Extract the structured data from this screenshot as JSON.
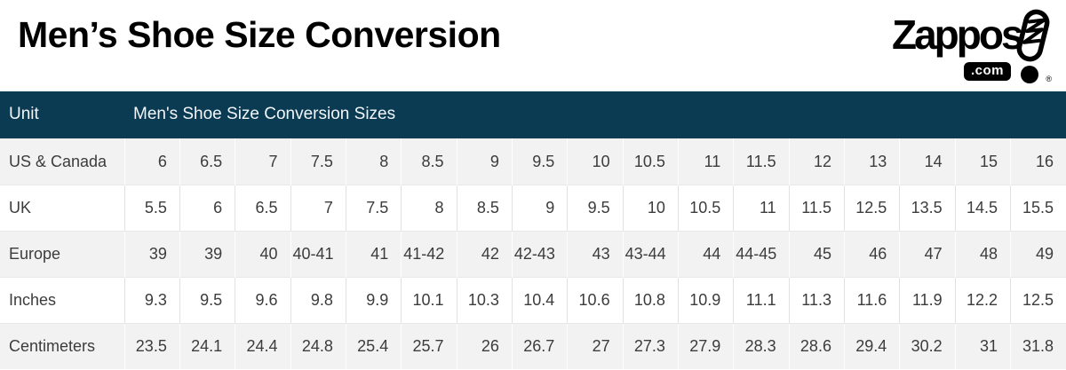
{
  "page": {
    "title": "Men’s Shoe Size Conversion"
  },
  "logo": {
    "brand": "Zappos",
    "domain": ".com",
    "registered": "®"
  },
  "colors": {
    "header_bg": "#0b3a53",
    "header_text": "#f2f6f9",
    "row_alt_bg": "#f2f2f2",
    "row_bg": "#ffffff",
    "border": "#e2e2e2",
    "body_text": "#3c3c3c",
    "title_text": "#000000"
  },
  "chart_data": {
    "type": "table",
    "title": "Men’s Shoe Size Conversion",
    "columns": [
      "Unit",
      "Men's Shoe Size Conversion Sizes"
    ],
    "rows": [
      {
        "label": "US & Canada",
        "values": [
          "6",
          "6.5",
          "7",
          "7.5",
          "8",
          "8.5",
          "9",
          "9.5",
          "10",
          "10.5",
          "11",
          "11.5",
          "12",
          "13",
          "14",
          "15",
          "16"
        ]
      },
      {
        "label": "UK",
        "values": [
          "5.5",
          "6",
          "6.5",
          "7",
          "7.5",
          "8",
          "8.5",
          "9",
          "9.5",
          "10",
          "10.5",
          "11",
          "11.5",
          "12.5",
          "13.5",
          "14.5",
          "15.5"
        ]
      },
      {
        "label": "Europe",
        "values": [
          "39",
          "39",
          "40",
          "40-41",
          "41",
          "41-42",
          "42",
          "42-43",
          "43",
          "43-44",
          "44",
          "44-45",
          "45",
          "46",
          "47",
          "48",
          "49"
        ]
      },
      {
        "label": "Inches",
        "values": [
          "9.3",
          "9.5",
          "9.6",
          "9.8",
          "9.9",
          "10.1",
          "10.3",
          "10.4",
          "10.6",
          "10.8",
          "10.9",
          "11.1",
          "11.3",
          "11.6",
          "11.9",
          "12.2",
          "12.5"
        ]
      },
      {
        "label": "Centimeters",
        "values": [
          "23.5",
          "24.1",
          "24.4",
          "24.8",
          "25.4",
          "25.7",
          "26",
          "26.7",
          "27",
          "27.3",
          "27.9",
          "28.3",
          "28.6",
          "29.4",
          "30.2",
          "31",
          "31.8"
        ]
      }
    ]
  }
}
